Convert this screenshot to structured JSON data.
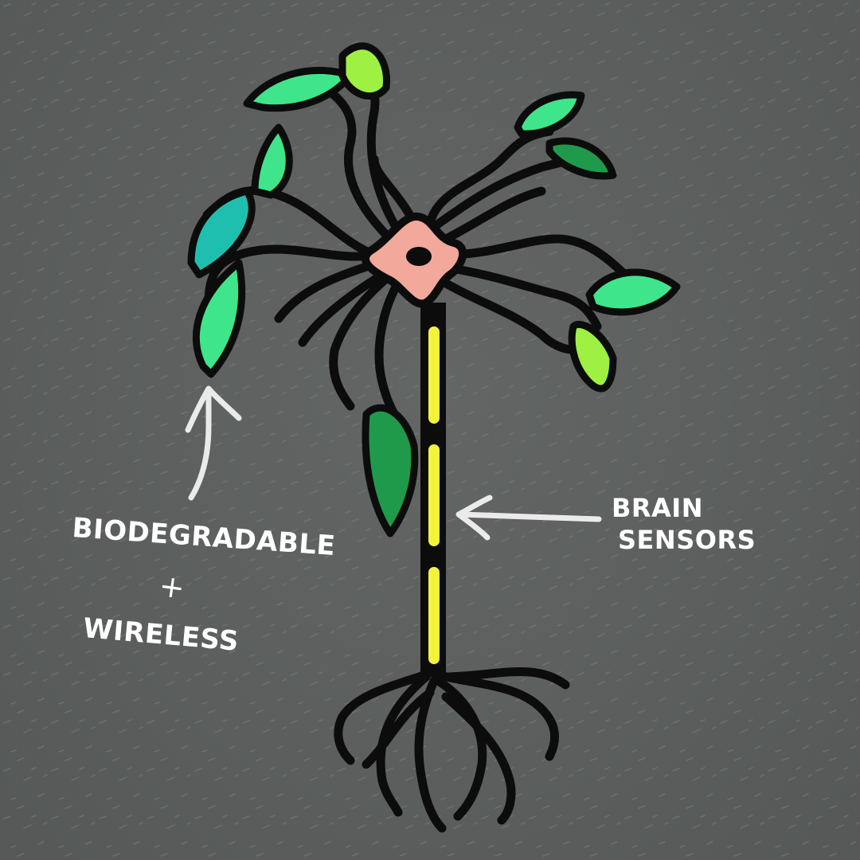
{
  "labels": {
    "biodegradable": "BIODEGRADABLE",
    "plus": "+",
    "wireless": "WIRELESS",
    "brain": "BRAIN",
    "sensors": "SENSORS"
  },
  "colors": {
    "background": "#5d605f",
    "outline": "#0c0c0c",
    "soma": "#f2a89a",
    "axon": "#f3f43a",
    "leaf_green": "#3ee58a",
    "leaf_dark": "#1f9a4a",
    "leaf_teal": "#1fbfb0",
    "leaf_lime": "#9ef043",
    "arrow": "#ffffff"
  },
  "icons": {
    "leaf": "leaf-icon",
    "arrow": "arrow-icon"
  }
}
